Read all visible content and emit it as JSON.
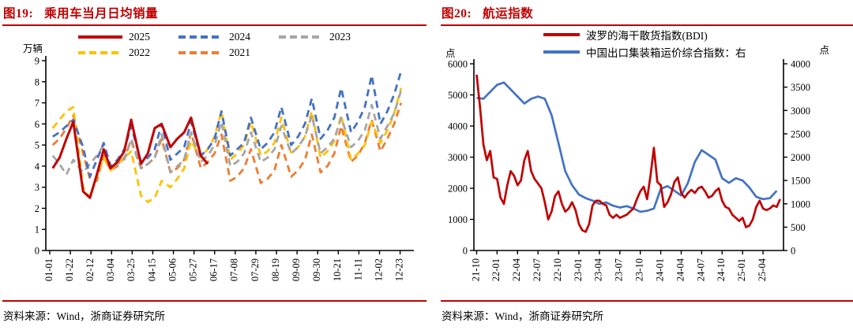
{
  "accent_color": "#C00000",
  "left_panel": {
    "title_prefix": "图19:",
    "title": "乘用车当月日均销量",
    "unit_left": "万辆",
    "source": "资料来源：Wind，浙商证券研究所"
  },
  "right_panel": {
    "title_prefix": "图20:",
    "title": "航运指数",
    "unit_left": "点",
    "unit_right": "点",
    "source": "资料来源：Wind，浙商证券研究所"
  },
  "chart_data": [
    {
      "type": "line",
      "title": "乘用车当月日均销量",
      "ylabel": "万辆",
      "grid": false,
      "legend_position": "top",
      "axes": {
        "left": {
          "lim": [
            0,
            9
          ],
          "step": 1
        }
      },
      "xlim": [
        -3,
        372
      ],
      "xtick_days": [
        1,
        22,
        43,
        64,
        85,
        106,
        127,
        148,
        169,
        190,
        211,
        232,
        253,
        274,
        295,
        316,
        337,
        358
      ],
      "xtick_labels": [
        "01-01",
        "01-22",
        "02-12",
        "03-04",
        "03-25",
        "04-15",
        "05-06",
        "05-27",
        "06-17",
        "07-08",
        "07-29",
        "08-19",
        "09-09",
        "09-30",
        "10-21",
        "11-11",
        "12-02",
        "12-23"
      ],
      "x_days": [
        4,
        11,
        18,
        25,
        35,
        42,
        49,
        56,
        63,
        70,
        77,
        84,
        94,
        101,
        108,
        115,
        124,
        131,
        138,
        145,
        155,
        162,
        169,
        176,
        185,
        192,
        199,
        206,
        216,
        223,
        230,
        237,
        247,
        254,
        261,
        268,
        277,
        284,
        291,
        298,
        308,
        315,
        322,
        329,
        338,
        345,
        352,
        359
      ],
      "series": [
        {
          "name": "2025",
          "color": "#C00000",
          "dash": false,
          "width": 3,
          "values": [
            3.9,
            4.4,
            5.3,
            6.1,
            2.8,
            2.5,
            3.6,
            4.8,
            3.9,
            4.2,
            4.7,
            6.2,
            4.1,
            4.6,
            5.8,
            6.0,
            4.9,
            5.3,
            5.6,
            6.3,
            4.5,
            4.1,
            null,
            null,
            null,
            null,
            null,
            null,
            null,
            null,
            null,
            null,
            null,
            null,
            null,
            null,
            null,
            null,
            null,
            null,
            null,
            null,
            null,
            null,
            null,
            null,
            null,
            null
          ]
        },
        {
          "name": "2024",
          "color": "#4472C4",
          "dash": true,
          "width": 2.8,
          "values": [
            5.4,
            5.6,
            5.9,
            6.2,
            4.9,
            3.5,
            4.3,
            5.1,
            4.0,
            4.3,
            4.8,
            5.9,
            4.2,
            4.4,
            4.8,
            6.0,
            4.3,
            4.6,
            4.9,
            6.1,
            4.5,
            4.8,
            5.3,
            6.6,
            4.5,
            4.8,
            5.1,
            6.3,
            4.8,
            5.1,
            5.6,
            6.8,
            5.0,
            5.4,
            6.0,
            7.2,
            5.3,
            5.7,
            6.3,
            7.7,
            5.6,
            6.1,
            6.8,
            8.3,
            6.0,
            6.6,
            7.4,
            8.5
          ]
        },
        {
          "name": "2023",
          "color": "#A6A6A6",
          "dash": true,
          "width": 2.8,
          "values": [
            4.5,
            4.1,
            3.6,
            4.3,
            3.7,
            4.1,
            4.5,
            5.0,
            3.9,
            4.1,
            4.3,
            5.3,
            3.9,
            4.1,
            4.4,
            5.5,
            3.7,
            4.0,
            4.3,
            5.6,
            4.2,
            4.5,
            5.0,
            6.1,
            4.0,
            4.2,
            4.6,
            5.6,
            4.2,
            4.4,
            4.8,
            5.9,
            4.6,
            4.9,
            5.4,
            6.4,
            4.6,
            4.9,
            5.3,
            6.3,
            4.9,
            5.2,
            5.7,
            6.9,
            5.3,
            5.9,
            6.5,
            7.6
          ]
        },
        {
          "name": "2022",
          "color": "#FFC000",
          "dash": true,
          "width": 2.8,
          "values": [
            5.8,
            6.2,
            6.6,
            6.8,
            3.0,
            2.5,
            3.5,
            4.4,
            3.8,
            4.1,
            4.4,
            4.7,
            2.6,
            2.3,
            2.5,
            3.3,
            3.0,
            3.4,
            3.9,
            5.2,
            4.4,
            4.8,
            5.4,
            6.6,
            4.3,
            4.6,
            5.0,
            6.1,
            4.5,
            4.7,
            5.1,
            6.3,
            4.6,
            4.9,
            5.4,
            6.6,
            4.4,
            4.7,
            5.2,
            6.4,
            4.3,
            4.6,
            5.0,
            6.1,
            5.1,
            5.7,
            6.5,
            7.7
          ]
        },
        {
          "name": "2021",
          "color": "#ED7D31",
          "dash": true,
          "width": 2.8,
          "values": [
            5.0,
            5.3,
            5.8,
            6.4,
            4.6,
            3.4,
            3.3,
            4.5,
            3.8,
            4.0,
            4.4,
            5.2,
            3.9,
            4.1,
            4.4,
            5.3,
            3.7,
            3.9,
            4.3,
            5.6,
            3.9,
            4.2,
            4.6,
            5.5,
            3.3,
            3.5,
            3.9,
            4.8,
            3.2,
            3.4,
            3.8,
            5.0,
            3.5,
            3.8,
            4.3,
            5.5,
            3.7,
            4.0,
            4.6,
            5.9,
            4.2,
            4.5,
            5.1,
            6.2,
            4.7,
            5.3,
            6.0,
            7.0
          ]
        }
      ]
    },
    {
      "type": "line",
      "title": "航运指数",
      "grid": false,
      "legend_position": "top",
      "axes": {
        "left": {
          "label": "点",
          "lim": [
            0,
            6000
          ],
          "step": 1000
        },
        "right": {
          "label": "点",
          "lim": [
            0,
            4000
          ],
          "step": 500
        }
      },
      "xlim": [
        -0.4,
        45
      ],
      "xtick_pos": [
        0,
        3,
        6,
        9,
        12,
        15,
        18,
        21,
        24,
        27,
        30,
        33,
        36,
        39,
        42
      ],
      "xtick_labels": [
        "21-10",
        "22-01",
        "22-04",
        "22-07",
        "22-10",
        "23-01",
        "23-04",
        "23-07",
        "23-10",
        "24-01",
        "24-04",
        "24-07",
        "24-10",
        "25-01",
        "25-04"
      ],
      "series": [
        {
          "name": "波罗的海干散货指数(BDI)",
          "color": "#C00000",
          "dash": false,
          "width": 2.7,
          "axis": "left",
          "x_start": 0,
          "x_step": 0.5,
          "values": [
            5650,
            4600,
            3400,
            2900,
            3200,
            2350,
            2300,
            1700,
            1500,
            2100,
            2550,
            2400,
            2100,
            2250,
            2900,
            3200,
            2550,
            2300,
            2150,
            2000,
            1550,
            1000,
            1250,
            1750,
            1900,
            1500,
            1250,
            1350,
            1550,
            1300,
            850,
            650,
            600,
            850,
            1450,
            1600,
            1600,
            1500,
            1450,
            1150,
            1050,
            1150,
            1050,
            1100,
            1150,
            1250,
            1350,
            1650,
            1900,
            2050,
            1650,
            2400,
            3300,
            2200,
            2100,
            1400,
            1550,
            1800,
            2200,
            2350,
            1850,
            1700,
            1850,
            1950,
            1850,
            2000,
            2050,
            1900,
            1700,
            1750,
            1900,
            2000,
            1600,
            1400,
            1350,
            1150,
            1050,
            950,
            1050,
            750,
            800,
            1000,
            1400,
            1600,
            1350,
            1300,
            1350,
            1450,
            1400,
            1650
          ]
        },
        {
          "name": "中国出口集装箱运价综合指数：右",
          "color": "#4472C4",
          "dash": false,
          "width": 2.7,
          "axis": "right",
          "x_start": 0,
          "x_step": 1,
          "values": [
            3270,
            3250,
            3400,
            3550,
            3600,
            3450,
            3300,
            3150,
            3250,
            3300,
            3250,
            2900,
            2300,
            1700,
            1400,
            1200,
            1120,
            1070,
            1000,
            1030,
            960,
            920,
            950,
            900,
            830,
            850,
            900,
            1320,
            1380,
            1280,
            1180,
            1450,
            1900,
            2150,
            2050,
            1950,
            1550,
            1450,
            1550,
            1500,
            1350,
            1150,
            1100,
            1120,
            1280
          ]
        }
      ]
    }
  ]
}
